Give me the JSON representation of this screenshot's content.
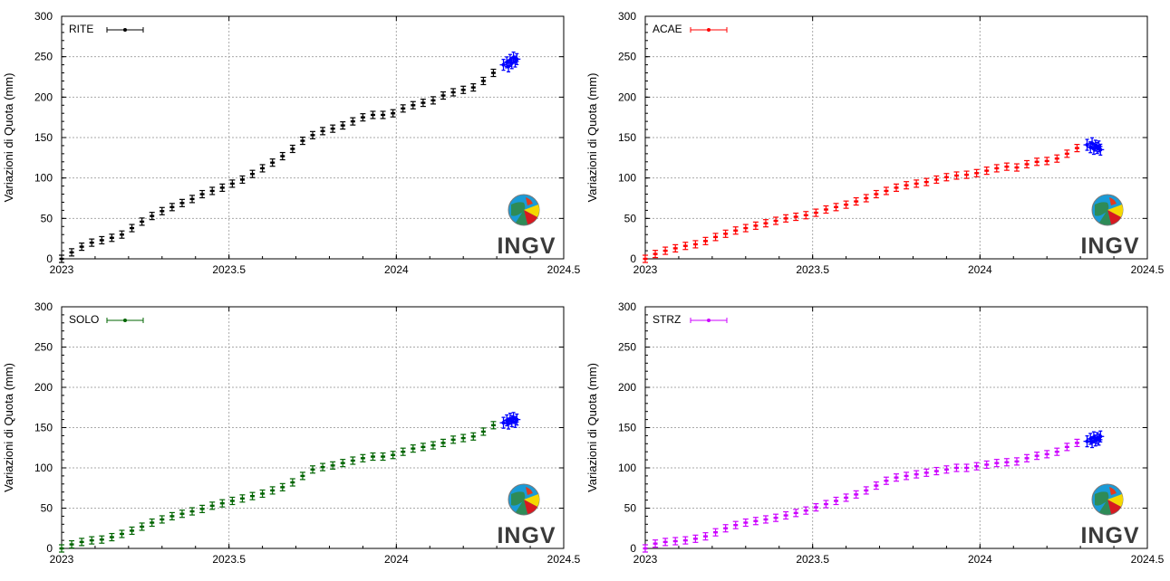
{
  "colors": {
    "RITE": "#000000",
    "ACAE": "#ff0000",
    "SOLO": "#006400",
    "STRZ": "#cc00ff",
    "recent": "#0000ff",
    "grid": "#aaaaaa"
  },
  "logo": {
    "text": "INGV",
    "icon": "globe-logo-icon"
  },
  "chart_data": [
    {
      "type": "scatter",
      "station": "RITE",
      "ylabel": "Variazioni di Quota (mm)",
      "xlim": [
        2023,
        2024.5
      ],
      "ylim": [
        0,
        300
      ],
      "xticks": [
        "2023",
        "2023.5",
        "2024",
        "2024.5"
      ],
      "yticks": [
        "0",
        "50",
        "100",
        "150",
        "200",
        "250",
        "300"
      ],
      "grid": true,
      "legend": "top-left",
      "x": [
        2023.0,
        2023.03,
        2023.06,
        2023.09,
        2023.12,
        2023.15,
        2023.18,
        2023.21,
        2023.24,
        2023.27,
        2023.3,
        2023.33,
        2023.36,
        2023.39,
        2023.42,
        2023.45,
        2023.48,
        2023.51,
        2023.54,
        2023.57,
        2023.6,
        2023.63,
        2023.66,
        2023.69,
        2023.72,
        2023.75,
        2023.78,
        2023.81,
        2023.84,
        2023.87,
        2023.9,
        2023.93,
        2023.96,
        2023.99,
        2024.02,
        2024.05,
        2024.08,
        2024.11,
        2024.14,
        2024.17,
        2024.2,
        2024.23,
        2024.26,
        2024.29
      ],
      "y": [
        0,
        8,
        15,
        20,
        23,
        26,
        30,
        38,
        46,
        53,
        59,
        64,
        69,
        74,
        80,
        84,
        88,
        93,
        98,
        105,
        112,
        119,
        127,
        136,
        146,
        153,
        158,
        161,
        165,
        170,
        175,
        178,
        178,
        180,
        186,
        190,
        193,
        196,
        202,
        206,
        209,
        212,
        220,
        230
      ],
      "recent_x": [
        2024.32,
        2024.33,
        2024.335,
        2024.34,
        2024.345,
        2024.35,
        2024.355,
        2024.36
      ],
      "recent_y": [
        240,
        243,
        238,
        246,
        242,
        249,
        244,
        247
      ]
    },
    {
      "type": "scatter",
      "station": "ACAE",
      "ylabel": "Variazioni di Quota (mm)",
      "xlim": [
        2023,
        2024.5
      ],
      "ylim": [
        0,
        300
      ],
      "xticks": [
        "2023",
        "2023.5",
        "2024",
        "2024.5"
      ],
      "yticks": [
        "0",
        "50",
        "100",
        "150",
        "200",
        "250",
        "300"
      ],
      "grid": true,
      "legend": "top-left",
      "x": [
        2023.0,
        2023.03,
        2023.06,
        2023.09,
        2023.12,
        2023.15,
        2023.18,
        2023.21,
        2023.24,
        2023.27,
        2023.3,
        2023.33,
        2023.36,
        2023.39,
        2023.42,
        2023.45,
        2023.48,
        2023.51,
        2023.54,
        2023.57,
        2023.6,
        2023.63,
        2023.66,
        2023.69,
        2023.72,
        2023.75,
        2023.78,
        2023.81,
        2023.84,
        2023.87,
        2023.9,
        2023.93,
        2023.96,
        2023.99,
        2024.02,
        2024.05,
        2024.08,
        2024.11,
        2024.14,
        2024.17,
        2024.2,
        2024.23,
        2024.26,
        2024.29
      ],
      "y": [
        0,
        6,
        10,
        13,
        16,
        18,
        22,
        27,
        31,
        35,
        38,
        41,
        44,
        47,
        50,
        52,
        54,
        57,
        61,
        64,
        67,
        71,
        75,
        80,
        84,
        88,
        91,
        93,
        95,
        98,
        101,
        103,
        104,
        106,
        109,
        112,
        114,
        113,
        117,
        120,
        121,
        124,
        130,
        137
      ],
      "recent_x": [
        2024.32,
        2024.33,
        2024.335,
        2024.34,
        2024.345,
        2024.35,
        2024.355,
        2024.36
      ],
      "recent_y": [
        141,
        138,
        143,
        136,
        140,
        137,
        139,
        135
      ]
    },
    {
      "type": "scatter",
      "station": "SOLO",
      "ylabel": "Variazioni di Quota (mm)",
      "xlim": [
        2023,
        2024.5
      ],
      "ylim": [
        0,
        300
      ],
      "xticks": [
        "2023",
        "2023.5",
        "2024",
        "2024.5"
      ],
      "yticks": [
        "0",
        "50",
        "100",
        "150",
        "200",
        "250",
        "300"
      ],
      "grid": true,
      "legend": "top-left",
      "x": [
        2023.0,
        2023.03,
        2023.06,
        2023.09,
        2023.12,
        2023.15,
        2023.18,
        2023.21,
        2023.24,
        2023.27,
        2023.3,
        2023.33,
        2023.36,
        2023.39,
        2023.42,
        2023.45,
        2023.48,
        2023.51,
        2023.54,
        2023.57,
        2023.6,
        2023.63,
        2023.66,
        2023.69,
        2023.72,
        2023.75,
        2023.78,
        2023.81,
        2023.84,
        2023.87,
        2023.9,
        2023.93,
        2023.96,
        2023.99,
        2024.02,
        2024.05,
        2024.08,
        2024.11,
        2024.14,
        2024.17,
        2024.2,
        2024.23,
        2024.26,
        2024.29
      ],
      "y": [
        0,
        5,
        8,
        10,
        11,
        14,
        18,
        22,
        27,
        32,
        36,
        40,
        43,
        46,
        49,
        53,
        56,
        59,
        62,
        65,
        68,
        72,
        76,
        82,
        90,
        98,
        101,
        103,
        106,
        109,
        112,
        114,
        114,
        116,
        120,
        124,
        126,
        128,
        131,
        135,
        137,
        139,
        145,
        153
      ],
      "recent_x": [
        2024.32,
        2024.33,
        2024.335,
        2024.34,
        2024.345,
        2024.35,
        2024.355,
        2024.36
      ],
      "recent_y": [
        156,
        159,
        155,
        161,
        158,
        162,
        157,
        160
      ]
    },
    {
      "type": "scatter",
      "station": "STRZ",
      "ylabel": "Variazioni di Quota (mm)",
      "xlim": [
        2023,
        2024.5
      ],
      "ylim": [
        0,
        300
      ],
      "xticks": [
        "2023",
        "2023.5",
        "2024",
        "2024.5"
      ],
      "yticks": [
        "0",
        "50",
        "100",
        "150",
        "200",
        "250",
        "300"
      ],
      "grid": true,
      "legend": "top-left",
      "x": [
        2023.0,
        2023.03,
        2023.06,
        2023.09,
        2023.12,
        2023.15,
        2023.18,
        2023.21,
        2023.24,
        2023.27,
        2023.3,
        2023.33,
        2023.36,
        2023.39,
        2023.42,
        2023.45,
        2023.48,
        2023.51,
        2023.54,
        2023.57,
        2023.6,
        2023.63,
        2023.66,
        2023.69,
        2023.72,
        2023.75,
        2023.78,
        2023.81,
        2023.84,
        2023.87,
        2023.9,
        2023.93,
        2023.96,
        2023.99,
        2024.02,
        2024.05,
        2024.08,
        2024.11,
        2024.14,
        2024.17,
        2024.2,
        2024.23,
        2024.26,
        2024.29
      ],
      "y": [
        0,
        6,
        8,
        9,
        10,
        12,
        15,
        20,
        25,
        29,
        32,
        34,
        36,
        38,
        41,
        44,
        47,
        51,
        55,
        59,
        63,
        67,
        72,
        78,
        84,
        88,
        90,
        92,
        94,
        96,
        98,
        100,
        100,
        102,
        104,
        106,
        107,
        108,
        112,
        115,
        117,
        120,
        126,
        131
      ],
      "recent_x": [
        2024.32,
        2024.33,
        2024.335,
        2024.34,
        2024.345,
        2024.35,
        2024.355,
        2024.36
      ],
      "recent_y": [
        133,
        136,
        132,
        138,
        134,
        137,
        135,
        139
      ]
    }
  ]
}
